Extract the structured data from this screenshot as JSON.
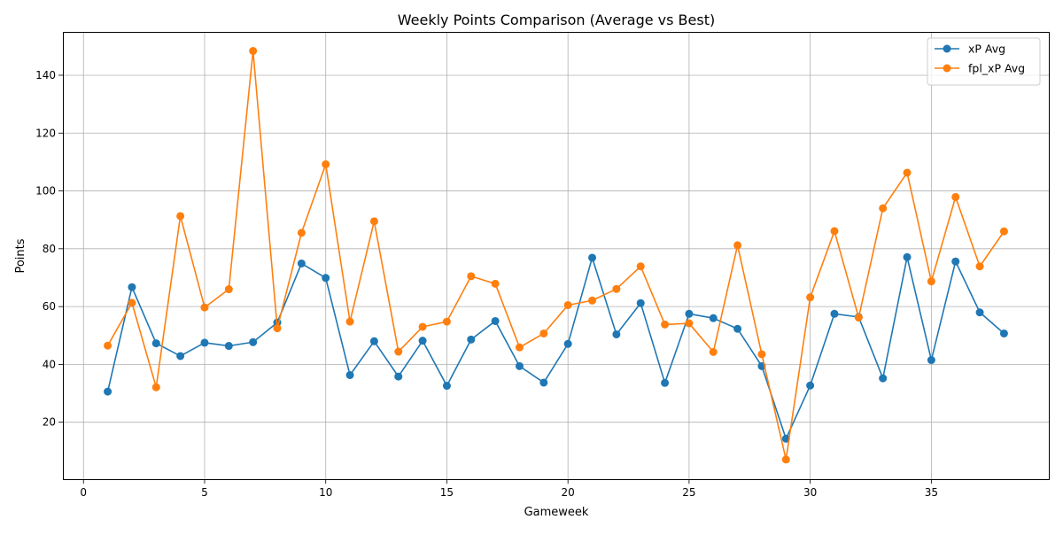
{
  "chart_data": {
    "type": "line",
    "title": "Weekly Points Comparison (Average vs Best)",
    "xlabel": "Gameweek",
    "ylabel": "Points",
    "xlim": [
      -0.85,
      39.85
    ],
    "ylim": [
      0.3,
      155.0
    ],
    "xticks": [
      0,
      5,
      10,
      15,
      20,
      25,
      30,
      35
    ],
    "yticks": [
      20,
      40,
      60,
      80,
      100,
      120,
      140
    ],
    "grid": true,
    "legend_position": "upper right",
    "x": [
      1,
      2,
      3,
      4,
      5,
      6,
      7,
      8,
      9,
      10,
      11,
      12,
      13,
      14,
      15,
      16,
      17,
      18,
      19,
      20,
      21,
      22,
      23,
      24,
      25,
      26,
      27,
      28,
      29,
      30,
      31,
      32,
      33,
      34,
      35,
      36,
      37,
      38
    ],
    "series": [
      {
        "name": "xP Avg",
        "color": "#1f77b4",
        "values": [
          30.6,
          66.7,
          47.3,
          42.9,
          47.5,
          46.4,
          47.7,
          54.5,
          74.9,
          69.9,
          36.3,
          48.0,
          35.8,
          48.2,
          32.6,
          48.6,
          55.0,
          39.4,
          33.7,
          47.1,
          76.9,
          50.4,
          61.2,
          33.6,
          57.5,
          56.0,
          52.3,
          39.4,
          14.3,
          32.7,
          57.5,
          56.4,
          35.2,
          77.1,
          41.5,
          75.6,
          58.0,
          50.7
        ]
      },
      {
        "name": "fpl_xP Avg",
        "color": "#ff7f0e",
        "values": [
          46.5,
          61.3,
          32.1,
          91.3,
          59.7,
          66.0,
          148.4,
          52.5,
          85.5,
          109.2,
          54.8,
          89.5,
          44.4,
          53.0,
          54.8,
          70.5,
          67.9,
          45.9,
          50.7,
          60.5,
          62.1,
          66.1,
          73.9,
          53.8,
          54.2,
          44.3,
          81.2,
          43.5,
          7.1,
          63.2,
          86.1,
          56.2,
          94.0,
          106.3,
          68.7,
          97.9,
          73.9,
          86.0
        ]
      }
    ]
  }
}
